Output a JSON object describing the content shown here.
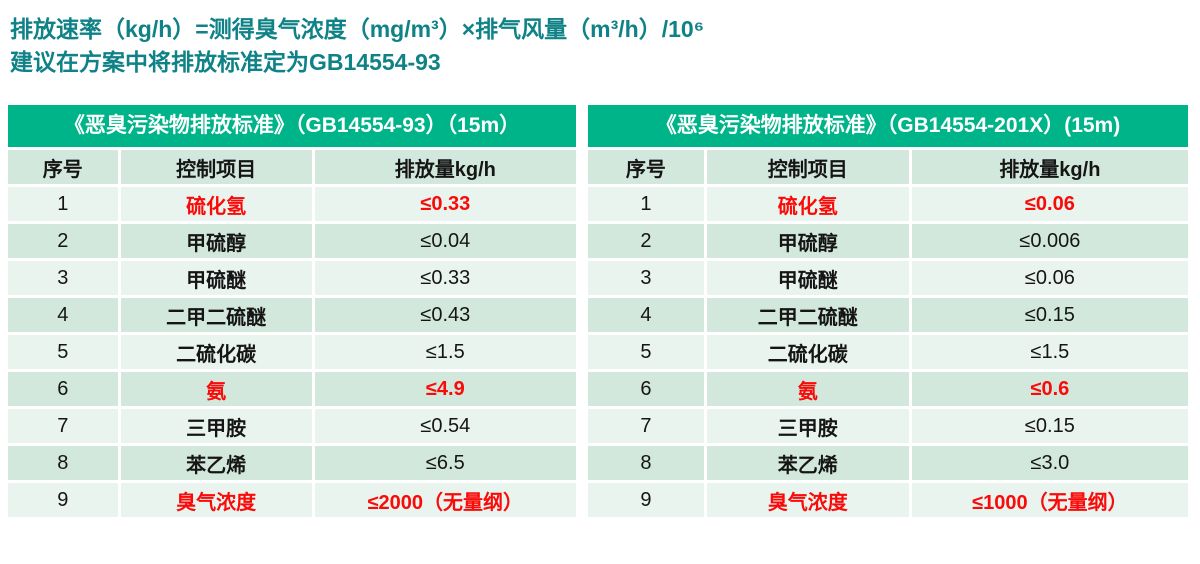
{
  "colors": {
    "intro_text": "#0E8286",
    "table_title_bg": "#00B489",
    "table_title_text": "#FFFFFF",
    "row_light_bg": "#E9F4EE",
    "row_dark_bg": "#D2E8DC",
    "highlight_red": "#FA0A08",
    "body_text": "#151515",
    "page_bg": "#FFFFFF"
  },
  "intro": {
    "line1": "排放速率（kg/h）=测得臭气浓度（mg/m³）×排气风量（m³/h）/10⁶",
    "line2": "建议在方案中将排放标准定为GB14554-93"
  },
  "tables": [
    {
      "title": "《恶臭污染物排放标准》（GB14554-93）（15m）",
      "columns": [
        "序号",
        "控制项目",
        "排放量kg/h"
      ],
      "rows": [
        {
          "no": "1",
          "item": "硫化氢",
          "value": "≤0.33",
          "highlight": true
        },
        {
          "no": "2",
          "item": "甲硫醇",
          "value": "≤0.04",
          "highlight": false
        },
        {
          "no": "3",
          "item": "甲硫醚",
          "value": "≤0.33",
          "highlight": false
        },
        {
          "no": "4",
          "item": "二甲二硫醚",
          "value": "≤0.43",
          "highlight": false
        },
        {
          "no": "5",
          "item": "二硫化碳",
          "value": "≤1.5",
          "highlight": false
        },
        {
          "no": "6",
          "item": "氨",
          "value": "≤4.9",
          "highlight": true
        },
        {
          "no": "7",
          "item": "三甲胺",
          "value": "≤0.54",
          "highlight": false
        },
        {
          "no": "8",
          "item": "苯乙烯",
          "value": "≤6.5",
          "highlight": false
        },
        {
          "no": "9",
          "item": "臭气浓度",
          "value": "≤2000（无量纲）",
          "highlight": true
        }
      ]
    },
    {
      "title": "《恶臭污染物排放标准》（GB14554-201X）(15m)",
      "columns": [
        "序号",
        "控制项目",
        "排放量kg/h"
      ],
      "rows": [
        {
          "no": "1",
          "item": "硫化氢",
          "value": "≤0.06",
          "highlight": true
        },
        {
          "no": "2",
          "item": "甲硫醇",
          "value": "≤0.006",
          "highlight": false
        },
        {
          "no": "3",
          "item": "甲硫醚",
          "value": "≤0.06",
          "highlight": false
        },
        {
          "no": "4",
          "item": "二甲二硫醚",
          "value": "≤0.15",
          "highlight": false
        },
        {
          "no": "5",
          "item": "二硫化碳",
          "value": "≤1.5",
          "highlight": false
        },
        {
          "no": "6",
          "item": "氨",
          "value": "≤0.6",
          "highlight": true
        },
        {
          "no": "7",
          "item": "三甲胺",
          "value": "≤0.15",
          "highlight": false
        },
        {
          "no": "8",
          "item": "苯乙烯",
          "value": "≤3.0",
          "highlight": false
        },
        {
          "no": "9",
          "item": "臭气浓度",
          "value": "≤1000（无量纲）",
          "highlight": true
        }
      ]
    }
  ]
}
